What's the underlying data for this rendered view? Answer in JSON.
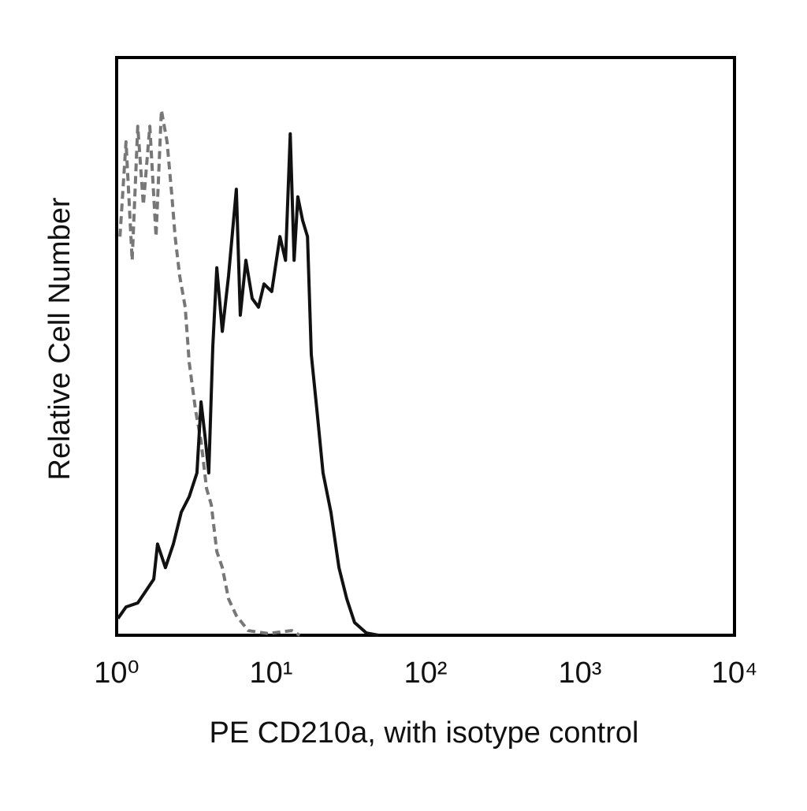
{
  "chart_data": {
    "type": "line",
    "x_label": "PE CD210a, with isotype control",
    "y_label": "Relative Cell Number",
    "xscale": "log",
    "xlim": [
      1,
      10000
    ],
    "xticks": [
      {
        "value": 1,
        "label": "10⁰"
      },
      {
        "value": 10,
        "label": "10¹"
      },
      {
        "value": 100,
        "label": "10²"
      },
      {
        "value": 1000,
        "label": "10³"
      },
      {
        "value": 10000,
        "label": "10⁴"
      }
    ],
    "ylim": [
      0,
      100
    ],
    "series": [
      {
        "name": "CD210a",
        "color": "#111111",
        "dash": false,
        "x": [
          1.02,
          1.15,
          1.37,
          1.54,
          1.74,
          1.84,
          2.07,
          2.33,
          2.62,
          2.95,
          3.31,
          3.52,
          3.73,
          3.95,
          4.19,
          4.45,
          4.83,
          5.3,
          5.96,
          6.32,
          6.87,
          7.54,
          8.29,
          9.0,
          10.1,
          11.4,
          12.4,
          13.3,
          14.1,
          14.9,
          16.0,
          17.2,
          18.2,
          19.8,
          21.7,
          24.4,
          27.5,
          30.9,
          34.7,
          41.4,
          49.4
        ],
        "values": [
          2.9,
          4.9,
          5.6,
          7.6,
          9.7,
          15.8,
          11.7,
          15.8,
          21.3,
          24,
          28.1,
          40.4,
          34.5,
          28.1,
          49.9,
          63.6,
          52.6,
          62.2,
          77.2,
          55.4,
          64.9,
          58.3,
          56.8,
          60.8,
          59.5,
          69,
          64.9,
          86.8,
          64.9,
          75.9,
          71.8,
          69,
          48.6,
          39,
          28.1,
          21.3,
          11.7,
          6.3,
          2.2,
          0.4,
          0
        ]
      },
      {
        "name": "isotype control",
        "color": "#777777",
        "dash": true,
        "x": [
          1.05,
          1.15,
          1.26,
          1.37,
          1.49,
          1.64,
          1.8,
          1.95,
          2.12,
          2.28,
          2.39,
          2.56,
          2.78,
          2.95,
          3.24,
          3.52,
          3.82,
          4.1,
          4.45,
          4.83,
          5.3,
          5.96,
          7.11,
          9.54,
          13.6,
          15.3
        ],
        "values": [
          69,
          85.4,
          64.9,
          88.1,
          74.5,
          88.1,
          69,
          90.9,
          85.4,
          75.9,
          69,
          62.2,
          56.8,
          47.2,
          39,
          33.6,
          25.4,
          22.6,
          14.5,
          11.7,
          6.3,
          3.4,
          0.8,
          0.3,
          0.8,
          0
        ]
      }
    ]
  }
}
